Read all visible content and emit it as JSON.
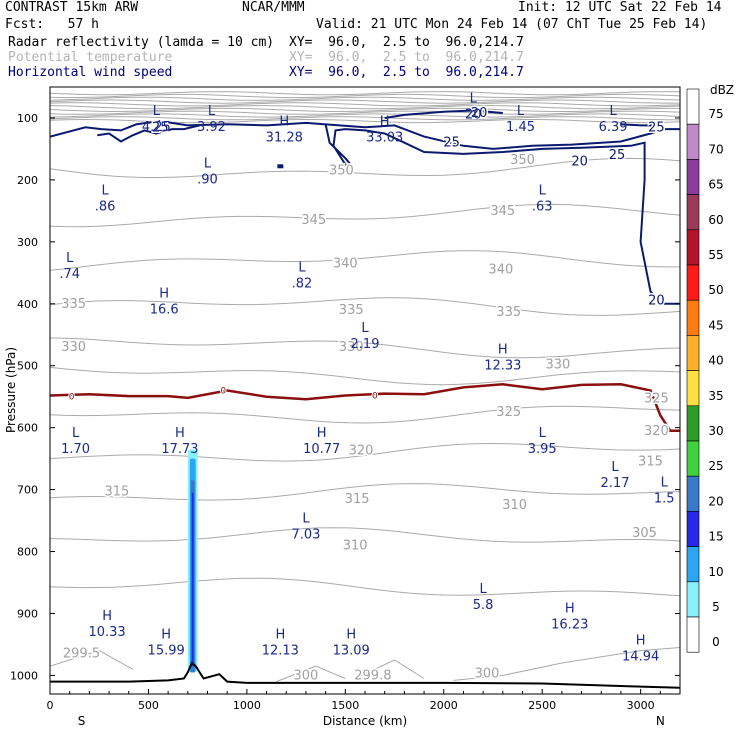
{
  "header": {
    "left_title": "CONTRAST 15km ARW",
    "center_title": "NCAR/MMM",
    "init": "Init: 12 UTC Sat 22 Feb 14",
    "fcst": "Fcst:   57 h",
    "valid": "Valid: 21 UTC Mon 24 Feb 14 (07 ChT Tue 25 Feb 14)",
    "fields": [
      {
        "name": "Radar reflectivity (lamda = 10 cm)",
        "xy": "XY=  96.0,  2.5 to  96.0,214.7",
        "color": "#000000"
      },
      {
        "name": "Potential temperature",
        "xy": "XY=  96.0,  2.5 to  96.0,214.7",
        "color": "#b4b4b4"
      },
      {
        "name": "Horizontal wind speed",
        "xy": "XY=  96.0,  2.5 to  96.0,214.7",
        "color": "#000080"
      }
    ]
  },
  "chart_data": {
    "type": "cross-section",
    "xlabel": "Distance (km)",
    "ylabel": "Pressure (hPa)",
    "xlim": [
      0,
      3200
    ],
    "ylim": [
      1030,
      50
    ],
    "x_ticks": [
      0,
      500,
      1000,
      1500,
      2000,
      2500,
      3000
    ],
    "y_ticks": [
      100,
      200,
      300,
      400,
      500,
      600,
      700,
      800,
      900,
      1000
    ],
    "end_labels": {
      "left": "S",
      "right": "N"
    },
    "colorbar": {
      "unit": "dBZ",
      "levels": [
        "75",
        "70",
        "65",
        "60",
        "55",
        "50",
        "45",
        "40",
        "35",
        "30",
        "25",
        "20",
        "15",
        "10",
        "5",
        "0"
      ],
      "colors": [
        "#ffffff",
        "#c08ac8",
        "#8e3ba0",
        "#9c3a5a",
        "#b4142a",
        "#ff1a1a",
        "#ff7a10",
        "#ffb028",
        "#ffe040",
        "#2e9c28",
        "#40d040",
        "#3a78c8",
        "#2828e8",
        "#2ca6f0",
        "#88f0f8",
        "#ffffff"
      ]
    },
    "theta_labels": [
      {
        "text": "350",
        "x": 1480,
        "p": 185
      },
      {
        "text": "350",
        "x": 2400,
        "p": 168
      },
      {
        "text": "345",
        "x": 1340,
        "p": 265
      },
      {
        "text": "345",
        "x": 2300,
        "p": 250
      },
      {
        "text": "340",
        "x": 1500,
        "p": 335
      },
      {
        "text": "340",
        "x": 2290,
        "p": 345
      },
      {
        "text": "335",
        "x": 120,
        "p": 400
      },
      {
        "text": "335",
        "x": 1530,
        "p": 410
      },
      {
        "text": "335",
        "x": 2330,
        "p": 413
      },
      {
        "text": "330",
        "x": 120,
        "p": 470
      },
      {
        "text": "330",
        "x": 1530,
        "p": 470
      },
      {
        "text": "330",
        "x": 2580,
        "p": 498
      },
      {
        "text": "325",
        "x": 2330,
        "p": 575
      },
      {
        "text": "325",
        "x": 3080,
        "p": 553
      },
      {
        "text": "320",
        "x": 1580,
        "p": 637
      },
      {
        "text": "320",
        "x": 3080,
        "p": 605
      },
      {
        "text": "315",
        "x": 340,
        "p": 703
      },
      {
        "text": "315",
        "x": 1560,
        "p": 715
      },
      {
        "text": "315",
        "x": 3050,
        "p": 655
      },
      {
        "text": "310",
        "x": 1550,
        "p": 790
      },
      {
        "text": "310",
        "x": 2360,
        "p": 725
      },
      {
        "text": "305",
        "x": 3020,
        "p": 770
      },
      {
        "text": "300",
        "x": 1300,
        "p": 1000
      },
      {
        "text": "300",
        "x": 2220,
        "p": 997
      },
      {
        "text": "299.5",
        "x": 160,
        "p": 965
      },
      {
        "text": "299.8",
        "x": 1640,
        "p": 1000
      }
    ],
    "wind_labels": [
      {
        "text": "25",
        "x": 560,
        "p": 115
      },
      {
        "text": "25",
        "x": 2040,
        "p": 140
      },
      {
        "text": "20",
        "x": 2180,
        "p": 92
      },
      {
        "text": "20",
        "x": 2690,
        "p": 170
      },
      {
        "text": "25",
        "x": 2880,
        "p": 160
      },
      {
        "text": "25",
        "x": 3080,
        "p": 115
      },
      {
        "text": "20",
        "x": 3080,
        "p": 395
      }
    ],
    "zero_dbz_labels": [
      {
        "text": "0",
        "x": 110,
        "p": 550
      },
      {
        "text": "0",
        "x": 880,
        "p": 540
      },
      {
        "text": "0",
        "x": 1650,
        "p": 548
      }
    ],
    "extrema": [
      {
        "t": "L",
        "v": "4.25",
        "x": 540,
        "p": 100
      },
      {
        "t": "L",
        "v": "3.92",
        "x": 820,
        "p": 100
      },
      {
        "t": "H",
        "v": "31.28",
        "x": 1190,
        "p": 117
      },
      {
        "t": "H",
        "v": "33.03",
        "x": 1700,
        "p": 117
      },
      {
        "t": "L",
        "v": "20",
        "x": 2150,
        "p": 80
      },
      {
        "t": "L",
        "v": "1.45",
        "x": 2390,
        "p": 100
      },
      {
        "t": "L",
        "v": "6.39",
        "x": 2860,
        "p": 100
      },
      {
        "t": "L",
        "v": ".90",
        "x": 800,
        "p": 185
      },
      {
        "t": "L",
        "v": ".86",
        "x": 280,
        "p": 228
      },
      {
        "t": "L",
        "v": ".63",
        "x": 2500,
        "p": 228
      },
      {
        "t": "L",
        "v": ".74",
        "x": 100,
        "p": 337
      },
      {
        "t": "L",
        "v": ".82",
        "x": 1280,
        "p": 353
      },
      {
        "t": "H",
        "v": "16.6",
        "x": 580,
        "p": 395
      },
      {
        "t": "L",
        "v": "2.19",
        "x": 1600,
        "p": 450
      },
      {
        "t": "H",
        "v": "12.33",
        "x": 2300,
        "p": 485
      },
      {
        "t": "L",
        "v": "1.70",
        "x": 130,
        "p": 620
      },
      {
        "t": "H",
        "v": "17.73",
        "x": 660,
        "p": 620
      },
      {
        "t": "H",
        "v": "10.77",
        "x": 1380,
        "p": 620
      },
      {
        "t": "L",
        "v": "3.95",
        "x": 2500,
        "p": 620
      },
      {
        "t": "L",
        "v": "2.17",
        "x": 2870,
        "p": 675
      },
      {
        "t": "L",
        "v": "1.5",
        "x": 3120,
        "p": 700
      },
      {
        "t": "L",
        "v": "7.03",
        "x": 1300,
        "p": 758
      },
      {
        "t": "L",
        "v": "5.8",
        "x": 2200,
        "p": 872
      },
      {
        "t": "H",
        "v": "10.33",
        "x": 290,
        "p": 915
      },
      {
        "t": "H",
        "v": "16.23",
        "x": 2640,
        "p": 903
      },
      {
        "t": "H",
        "v": "15.99",
        "x": 590,
        "p": 945
      },
      {
        "t": "H",
        "v": "12.13",
        "x": 1170,
        "p": 945
      },
      {
        "t": "H",
        "v": "13.09",
        "x": 1530,
        "p": 945
      },
      {
        "t": "H",
        "v": "14.94",
        "x": 3000,
        "p": 955
      }
    ],
    "zero_dbz_line": {
      "x": [
        0,
        200,
        400,
        600,
        700,
        900,
        1100,
        1300,
        1500,
        1700,
        1900,
        2100,
        2300,
        2500,
        2700,
        2900,
        3050,
        3100,
        3150,
        3200
      ],
      "p": [
        548,
        546,
        549,
        549,
        552,
        540,
        550,
        554,
        548,
        545,
        546,
        535,
        530,
        538,
        531,
        530,
        540,
        580,
        605,
        605
      ]
    },
    "terrain_line": {
      "x": [
        0,
        200,
        400,
        600,
        680,
        700,
        720,
        740,
        780,
        860,
        900,
        1000,
        1500,
        2000,
        2500,
        3000,
        3200
      ],
      "p": [
        1010,
        1010,
        1010,
        1008,
        1005,
        995,
        980,
        985,
        1005,
        998,
        1010,
        1012,
        1012,
        1012,
        1013,
        1018,
        1020
      ]
    },
    "reflectivity_column": {
      "x": [
        700,
        750
      ],
      "p_top": 635,
      "p_bottom": 995
    }
  }
}
